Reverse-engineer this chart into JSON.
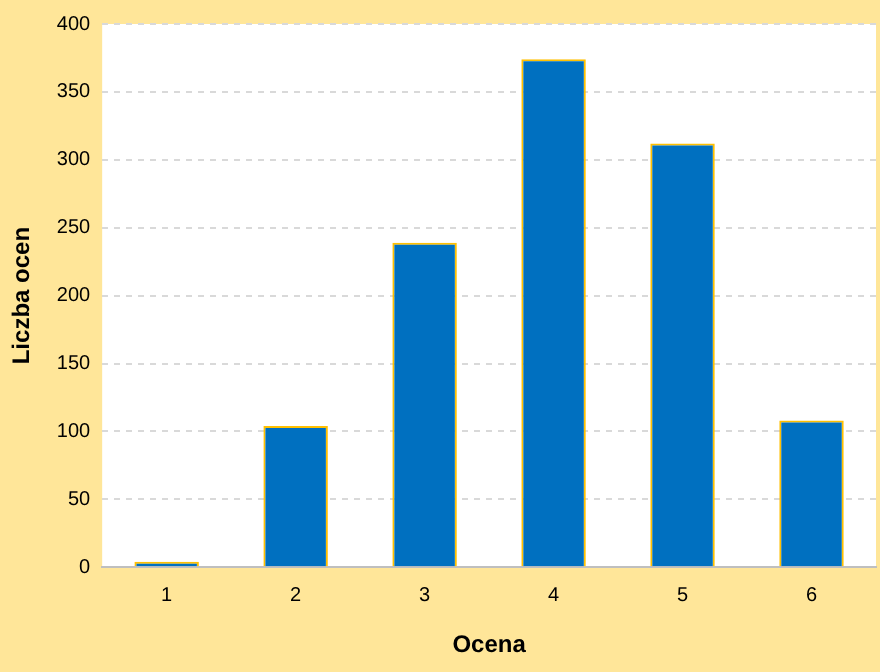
{
  "chart_data": {
    "type": "bar",
    "xlabel": "Ocena",
    "ylabel": "Liczba ocen",
    "categories": [
      "1",
      "2",
      "3",
      "4",
      "5",
      "6"
    ],
    "values": [
      4,
      104,
      239,
      374,
      312,
      108
    ],
    "color": "#0070c0",
    "ylim": [
      0,
      400
    ],
    "yticks": [
      0,
      50,
      100,
      150,
      200,
      250,
      300,
      350,
      400
    ],
    "grid": "y",
    "legend": false
  }
}
